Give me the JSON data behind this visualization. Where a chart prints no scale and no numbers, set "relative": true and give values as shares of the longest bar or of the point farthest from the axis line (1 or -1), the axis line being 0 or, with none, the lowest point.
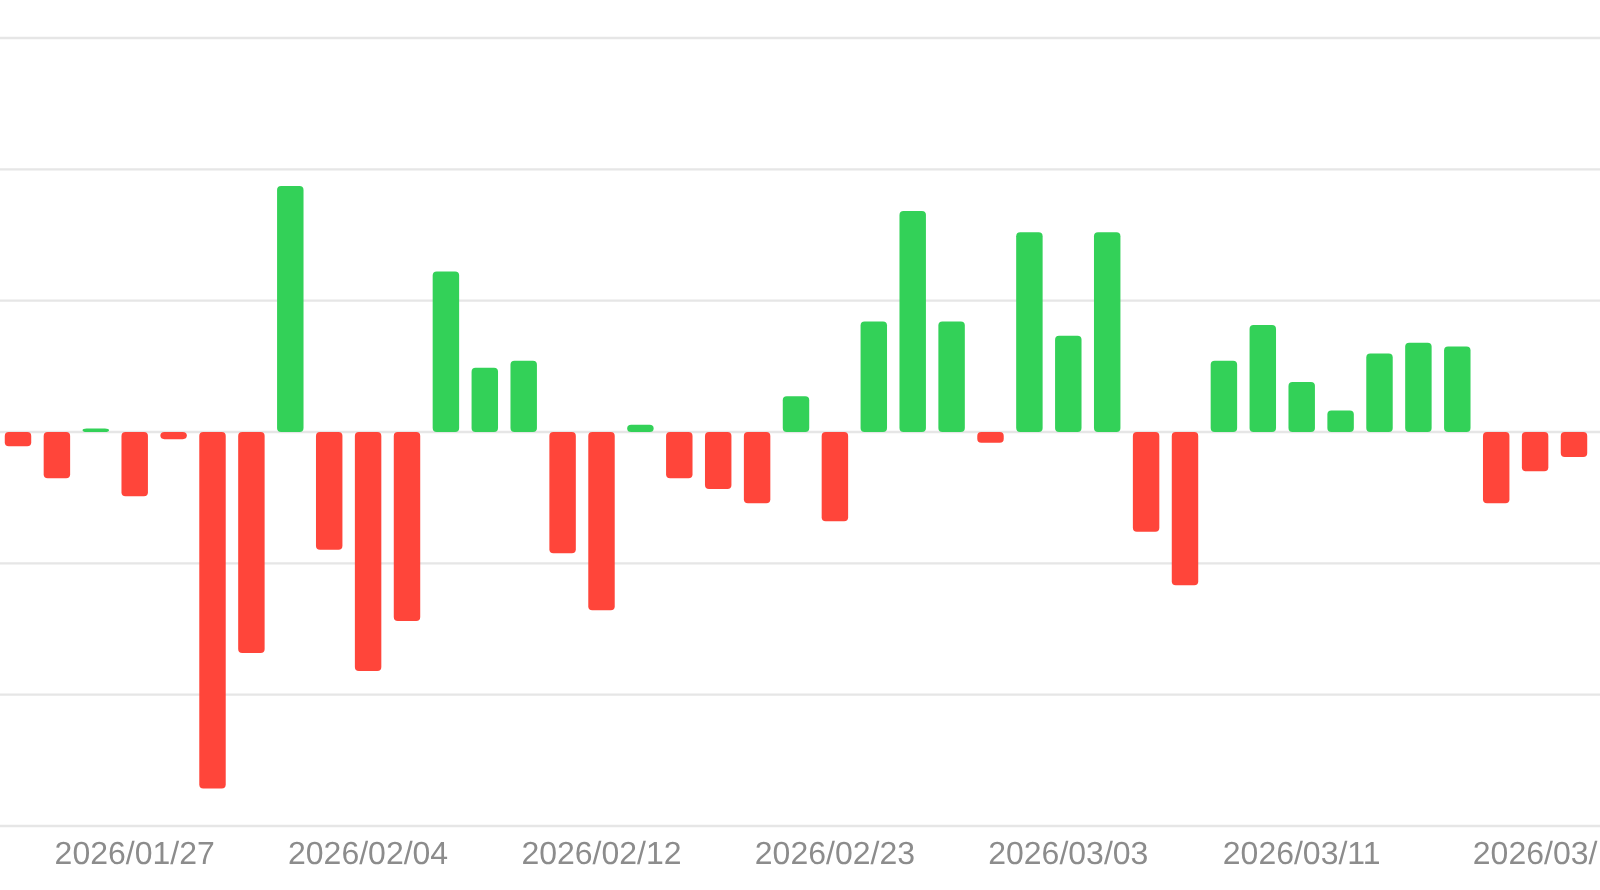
{
  "chart_data": {
    "type": "bar",
    "relative": true,
    "grid": "y",
    "categories": [
      null,
      null,
      null,
      "2026/01/27",
      null,
      null,
      null,
      null,
      null,
      "2026/02/04",
      null,
      null,
      null,
      null,
      null,
      "2026/02/12",
      null,
      null,
      null,
      null,
      null,
      "2026/02/23",
      null,
      null,
      null,
      null,
      null,
      "2026/03/03",
      null,
      null,
      null,
      null,
      null,
      "2026/03/11",
      null,
      null,
      null,
      null,
      null,
      "2026/03/",
      null
    ],
    "values": [
      -0.04,
      -0.13,
      0.01,
      -0.18,
      -0.02,
      -1,
      -0.62,
      0.69,
      -0.33,
      -0.67,
      -0.53,
      0.45,
      0.18,
      0.2,
      -0.34,
      -0.5,
      0.02,
      -0.13,
      -0.16,
      -0.2,
      0.1,
      -0.25,
      0.31,
      0.62,
      0.31,
      -0.03,
      0.56,
      0.27,
      0.56,
      -0.28,
      -0.43,
      0.2,
      0.3,
      0.14,
      0.06,
      0.22,
      0.25,
      0.24,
      -0.2,
      -0.11,
      -0.07
    ],
    "colors": [
      "#ff453a",
      "#ff453a",
      "#33d158",
      "#ff453a",
      "#ff453a",
      "#ff453a",
      "#ff453a",
      "#33d158",
      "#ff453a",
      "#ff453a",
      "#ff453a",
      "#33d158",
      "#33d158",
      "#33d158",
      "#ff453a",
      "#ff453a",
      "#33d158",
      "#ff453a",
      "#ff453a",
      "#ff453a",
      "#33d158",
      "#ff453a",
      "#33d158",
      "#33d158",
      "#33d158",
      "#ff453a",
      "#33d158",
      "#33d158",
      "#33d158",
      "#ff453a",
      "#ff453a",
      "#33d158",
      "#33d158",
      "#33d158",
      "#33d158",
      "#33d158",
      "#33d158",
      "#33d158",
      "#ff453a",
      "#ff453a",
      "#ff453a"
    ]
  }
}
